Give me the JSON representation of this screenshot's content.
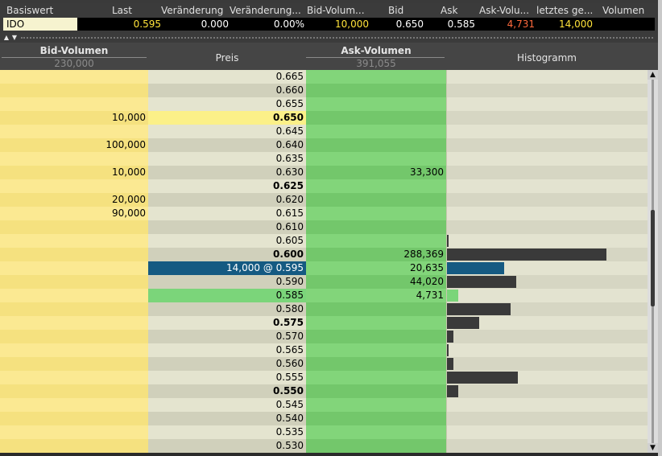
{
  "quote": {
    "headers": [
      "Basiswert",
      "Last",
      "Veränderung",
      "Veränderung...",
      "Bid-Volum...",
      "Bid",
      "Ask",
      "Ask-Volu...",
      "letztes ge...",
      "Volumen"
    ],
    "symbol": "IDO",
    "last": "0.595",
    "change": "0.000",
    "change_pct": "0.00%",
    "bid_volume": "10,000",
    "bid": "0.650",
    "ask": "0.585",
    "ask_volume": "4,731",
    "last_trade": "14,000",
    "volume": ""
  },
  "colors": {
    "yellow_value": "#ffe33a",
    "white_value": "#ffffff",
    "orange_value": "#ff6a3d",
    "last_trade_bg": "#155a82",
    "hist_bar": "#3a3a3a",
    "hist_bar_last": "#155a82",
    "hist_bar_ask": "#7bd57a"
  },
  "ladder_header": {
    "bid_title": "Bid-Volumen",
    "bid_total": "230,000",
    "price_title": "Preis",
    "ask_title": "Ask-Volumen",
    "ask_total": "391,055",
    "hist_title": "Histogramm"
  },
  "icons": {
    "collapse_up": "triangle-up-icon",
    "collapse_down": "triangle-down-icon",
    "scroll_up": "scroll-up-arrow-icon",
    "scroll_down": "scroll-down-arrow-icon"
  },
  "hist_scale_max": 288369,
  "rows": [
    {
      "price": "0.665",
      "bid": "",
      "ask": "",
      "bold": false,
      "hist": 0
    },
    {
      "price": "0.660",
      "bid": "",
      "ask": "",
      "bold": false,
      "hist": 0
    },
    {
      "price": "0.655",
      "bid": "",
      "ask": "",
      "bold": false,
      "hist": 0
    },
    {
      "price": "0.650",
      "bid": "10,000",
      "ask": "",
      "bold": true,
      "hist": 0,
      "type": "bidbest"
    },
    {
      "price": "0.645",
      "bid": "",
      "ask": "",
      "bold": false,
      "hist": 0
    },
    {
      "price": "0.640",
      "bid": "100,000",
      "ask": "",
      "bold": false,
      "hist": 0
    },
    {
      "price": "0.635",
      "bid": "",
      "ask": "",
      "bold": false,
      "hist": 0
    },
    {
      "price": "0.630",
      "bid": "10,000",
      "ask": "33,300",
      "bold": false,
      "hist": 0
    },
    {
      "price": "0.625",
      "bid": "",
      "ask": "",
      "bold": true,
      "hist": 0
    },
    {
      "price": "0.620",
      "bid": "20,000",
      "ask": "",
      "bold": false,
      "hist": 0
    },
    {
      "price": "0.615",
      "bid": "90,000",
      "ask": "",
      "bold": false,
      "hist": 0
    },
    {
      "price": "0.610",
      "bid": "",
      "ask": "",
      "bold": false,
      "hist": 0
    },
    {
      "price": "0.605",
      "bid": "",
      "ask": "",
      "bold": false,
      "hist": 1000
    },
    {
      "price": "0.600",
      "bid": "",
      "ask": "288,369",
      "bold": true,
      "hist": 288369
    },
    {
      "price": "14,000 @ 0.595",
      "bid": "",
      "ask": "20,635",
      "bold": false,
      "hist": 103000,
      "type": "last"
    },
    {
      "price": "0.590",
      "bid": "",
      "ask": "44,020",
      "bold": false,
      "hist": 125000
    },
    {
      "price": "0.585",
      "bid": "",
      "ask": "4,731",
      "bold": false,
      "hist": 21000,
      "type": "askbest"
    },
    {
      "price": "0.580",
      "bid": "",
      "ask": "",
      "bold": false,
      "hist": 115000
    },
    {
      "price": "0.575",
      "bid": "",
      "ask": "",
      "bold": true,
      "hist": 58000
    },
    {
      "price": "0.570",
      "bid": "",
      "ask": "",
      "bold": false,
      "hist": 11000
    },
    {
      "price": "0.565",
      "bid": "",
      "ask": "",
      "bold": false,
      "hist": 2500
    },
    {
      "price": "0.560",
      "bid": "",
      "ask": "",
      "bold": false,
      "hist": 11000
    },
    {
      "price": "0.555",
      "bid": "",
      "ask": "",
      "bold": false,
      "hist": 128000
    },
    {
      "price": "0.550",
      "bid": "",
      "ask": "",
      "bold": true,
      "hist": 21000
    },
    {
      "price": "0.545",
      "bid": "",
      "ask": "",
      "bold": false,
      "hist": 0
    },
    {
      "price": "0.540",
      "bid": "",
      "ask": "",
      "bold": false,
      "hist": 0
    },
    {
      "price": "0.535",
      "bid": "",
      "ask": "",
      "bold": false,
      "hist": 0
    },
    {
      "price": "0.530",
      "bid": "",
      "ask": "",
      "bold": false,
      "hist": 0
    }
  ]
}
